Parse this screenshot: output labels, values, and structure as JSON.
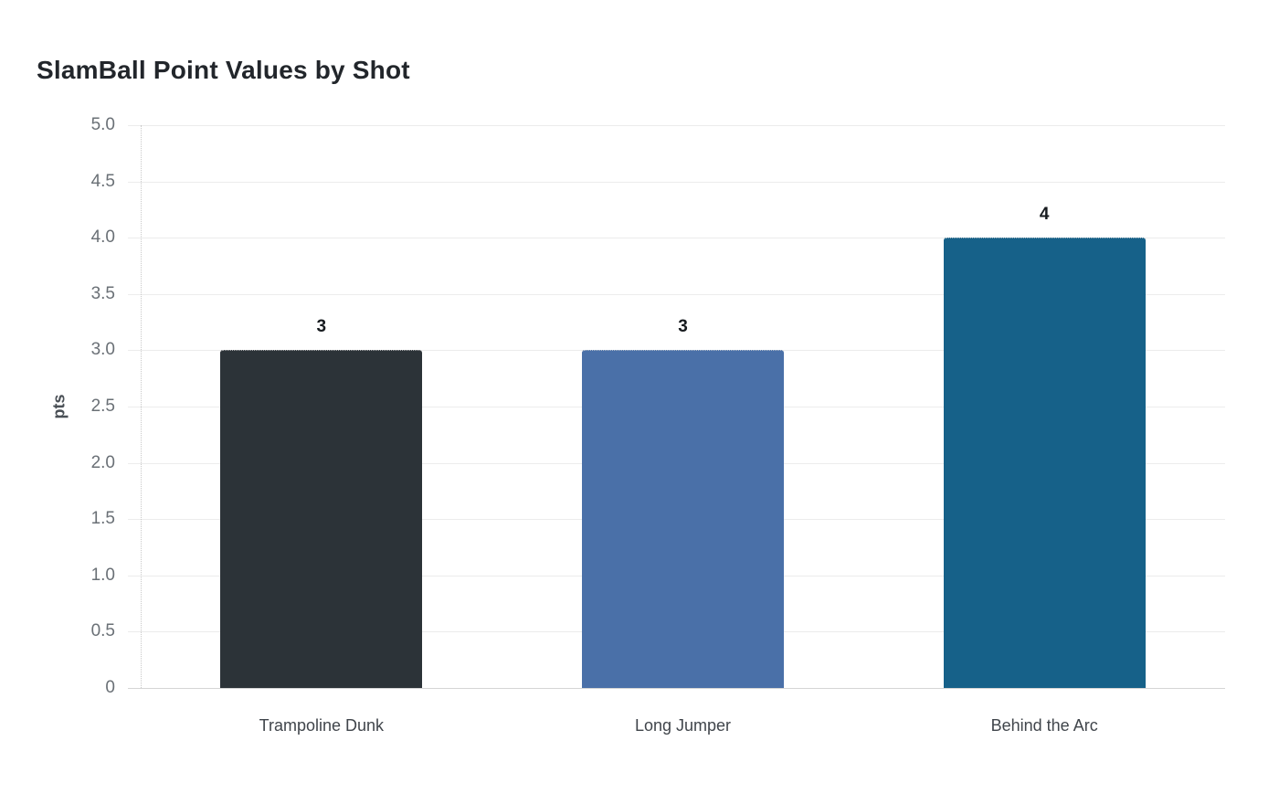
{
  "chart_data": {
    "type": "bar",
    "title": "SlamBall Point Values by Shot",
    "categories": [
      "Trampoline Dunk",
      "Long Jumper",
      "Behind the Arc"
    ],
    "values": [
      3,
      3,
      4
    ],
    "value_labels": [
      "3",
      "3",
      "4"
    ],
    "bar_colors": [
      "#2c3338",
      "#4a70a8",
      "#166189"
    ],
    "xlabel": "",
    "ylabel": "pts",
    "ylim": [
      0,
      5
    ],
    "yticks": [
      {
        "v": 0,
        "label": "0"
      },
      {
        "v": 0.5,
        "label": "0.5"
      },
      {
        "v": 1,
        "label": "1.0"
      },
      {
        "v": 1.5,
        "label": "1.5"
      },
      {
        "v": 2,
        "label": "2.0"
      },
      {
        "v": 2.5,
        "label": "2.5"
      },
      {
        "v": 3,
        "label": "3.0"
      },
      {
        "v": 3.5,
        "label": "3.5"
      },
      {
        "v": 4,
        "label": "4.0"
      },
      {
        "v": 4.5,
        "label": "4.5"
      },
      {
        "v": 5,
        "label": "5.0"
      }
    ],
    "grid": "horizontal",
    "legend": "none",
    "colors": {
      "title": "#22262b",
      "tick_label": "#6a7076",
      "category_label": "#40454b",
      "value_label": "#171b1f",
      "gridline": "#ececec",
      "baseline": "#d5d5d5",
      "axis_line": "#c9c9c9",
      "axis_label": "#4a5056",
      "background": "#ffffff"
    }
  }
}
